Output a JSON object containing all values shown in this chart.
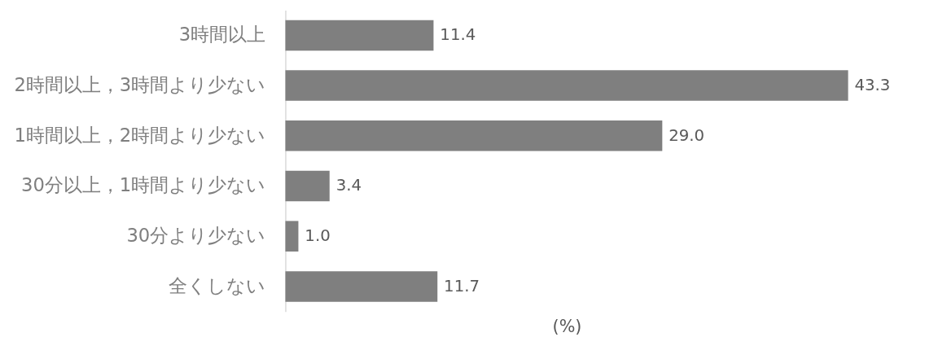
{
  "chart_data": {
    "type": "bar",
    "orientation": "horizontal",
    "xlabel": "(%)",
    "categories": [
      "3時間以上",
      "2時間以上，3時間より少ない",
      "1時間以上，2時間より少ない",
      "30分以上，1時間より少ない",
      "30分より少ない",
      "全くしない"
    ],
    "values": [
      11.4,
      43.3,
      29.0,
      3.4,
      1.0,
      11.7
    ],
    "value_labels": [
      "11.4",
      "43.3",
      "29.0",
      "3.4",
      "1.0",
      "11.7"
    ],
    "color": "#7f7f7f",
    "tick_labels": "y"
  }
}
